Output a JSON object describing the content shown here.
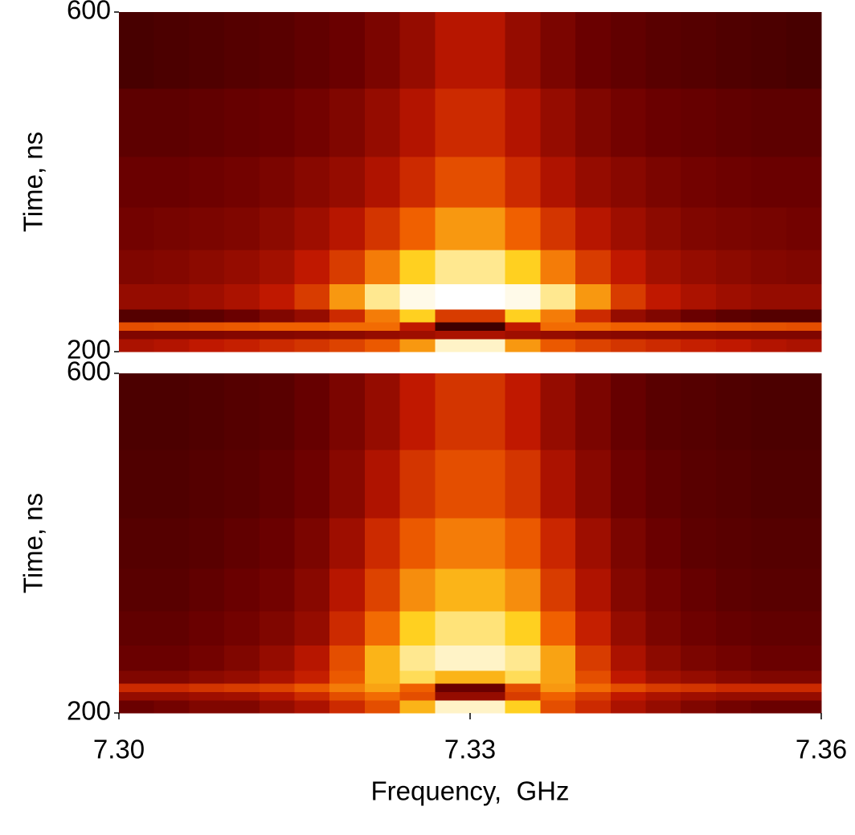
{
  "chart_data": [
    {
      "type": "heatmap",
      "ylabel": "Time, ns",
      "xlim": [
        7.3,
        7.36
      ],
      "ylim": [
        200,
        600
      ],
      "yticks": [
        200,
        600
      ],
      "xbins": [
        7.3,
        7.303,
        7.306,
        7.309,
        7.312,
        7.315,
        7.318,
        7.321,
        7.324,
        7.327,
        7.33,
        7.333,
        7.336,
        7.339,
        7.342,
        7.345,
        7.348,
        7.351,
        7.354,
        7.357,
        7.36
      ],
      "ybins": [
        200,
        215,
        225,
        235,
        250,
        280,
        320,
        370,
        430,
        510,
        600
      ],
      "zlim": [
        0,
        1
      ],
      "colorscale": [
        "#140000",
        "#6a0000",
        "#c01800",
        "#f06000",
        "#ffd020",
        "#ffffff"
      ],
      "values": [
        [
          0.35,
          0.37,
          0.4,
          0.42,
          0.45,
          0.48,
          0.52,
          0.58,
          0.7,
          0.95,
          0.95,
          0.7,
          0.58,
          0.52,
          0.48,
          0.45,
          0.42,
          0.4,
          0.37,
          0.35
        ],
        [
          0.25,
          0.25,
          0.25,
          0.26,
          0.26,
          0.27,
          0.28,
          0.3,
          0.32,
          0.35,
          0.35,
          0.32,
          0.3,
          0.28,
          0.27,
          0.26,
          0.26,
          0.25,
          0.25,
          0.25
        ],
        [
          0.55,
          0.56,
          0.57,
          0.58,
          0.6,
          0.6,
          0.62,
          0.62,
          0.4,
          0.1,
          0.1,
          0.4,
          0.62,
          0.62,
          0.6,
          0.6,
          0.58,
          0.57,
          0.56,
          0.55
        ],
        [
          0.15,
          0.15,
          0.17,
          0.2,
          0.25,
          0.3,
          0.45,
          0.65,
          0.8,
          0.5,
          0.5,
          0.8,
          0.65,
          0.45,
          0.3,
          0.25,
          0.2,
          0.17,
          0.15,
          0.15
        ],
        [
          0.3,
          0.3,
          0.32,
          0.35,
          0.4,
          0.5,
          0.7,
          0.9,
          0.98,
          1,
          1,
          0.98,
          0.9,
          0.7,
          0.5,
          0.4,
          0.35,
          0.32,
          0.3,
          0.3
        ],
        [
          0.25,
          0.26,
          0.28,
          0.3,
          0.33,
          0.4,
          0.5,
          0.65,
          0.8,
          0.9,
          0.9,
          0.8,
          0.65,
          0.5,
          0.4,
          0.33,
          0.3,
          0.28,
          0.26,
          0.25
        ],
        [
          0.22,
          0.23,
          0.24,
          0.25,
          0.28,
          0.32,
          0.38,
          0.48,
          0.6,
          0.7,
          0.7,
          0.6,
          0.48,
          0.38,
          0.32,
          0.28,
          0.25,
          0.24,
          0.23,
          0.22
        ],
        [
          0.2,
          0.2,
          0.21,
          0.22,
          0.24,
          0.27,
          0.3,
          0.36,
          0.45,
          0.55,
          0.55,
          0.45,
          0.36,
          0.3,
          0.27,
          0.24,
          0.22,
          0.21,
          0.2,
          0.2
        ],
        [
          0.17,
          0.17,
          0.18,
          0.19,
          0.2,
          0.22,
          0.25,
          0.3,
          0.37,
          0.45,
          0.45,
          0.37,
          0.3,
          0.25,
          0.22,
          0.2,
          0.19,
          0.18,
          0.17,
          0.17
        ],
        [
          0.12,
          0.13,
          0.14,
          0.15,
          0.16,
          0.18,
          0.2,
          0.24,
          0.3,
          0.38,
          0.38,
          0.3,
          0.24,
          0.2,
          0.18,
          0.16,
          0.15,
          0.14,
          0.13,
          0.12
        ]
      ]
    },
    {
      "type": "heatmap",
      "ylabel": "Time, ns",
      "xlabel": "Frequency,  GHz",
      "xlim": [
        7.3,
        7.36
      ],
      "xticks": [
        {
          "value": 7.3,
          "label": "7.30"
        },
        7.33,
        7.36
      ],
      "ylim": [
        200,
        600
      ],
      "yticks": [
        200,
        600
      ],
      "xbins": [
        7.3,
        7.303,
        7.306,
        7.309,
        7.312,
        7.315,
        7.318,
        7.321,
        7.324,
        7.327,
        7.33,
        7.333,
        7.336,
        7.339,
        7.342,
        7.345,
        7.348,
        7.351,
        7.354,
        7.357,
        7.36
      ],
      "ybins": [
        200,
        215,
        225,
        235,
        250,
        280,
        320,
        370,
        430,
        510,
        600
      ],
      "zlim": [
        0,
        1
      ],
      "colorscale": [
        "#140000",
        "#6a0000",
        "#c01800",
        "#f06000",
        "#ffd020",
        "#ffffff"
      ],
      "values": [
        [
          0.2,
          0.22,
          0.25,
          0.25,
          0.3,
          0.35,
          0.45,
          0.55,
          0.75,
          0.95,
          0.95,
          0.8,
          0.55,
          0.45,
          0.35,
          0.3,
          0.25,
          0.22,
          0.2,
          0.2
        ],
        [
          0.3,
          0.3,
          0.32,
          0.33,
          0.38,
          0.45,
          0.55,
          0.62,
          0.55,
          0.3,
          0.3,
          0.5,
          0.6,
          0.5,
          0.4,
          0.35,
          0.32,
          0.3,
          0.3,
          0.3
        ],
        [
          0.45,
          0.45,
          0.48,
          0.5,
          0.52,
          0.58,
          0.65,
          0.72,
          0.6,
          0.2,
          0.2,
          0.55,
          0.7,
          0.62,
          0.55,
          0.5,
          0.48,
          0.45,
          0.45,
          0.45
        ],
        [
          0.25,
          0.25,
          0.28,
          0.3,
          0.35,
          0.42,
          0.58,
          0.75,
          0.85,
          0.75,
          0.75,
          0.85,
          0.72,
          0.55,
          0.4,
          0.33,
          0.3,
          0.27,
          0.25,
          0.25
        ],
        [
          0.2,
          0.2,
          0.22,
          0.25,
          0.3,
          0.38,
          0.55,
          0.75,
          0.9,
          0.95,
          0.95,
          0.9,
          0.72,
          0.5,
          0.35,
          0.28,
          0.24,
          0.22,
          0.2,
          0.2
        ],
        [
          0.18,
          0.18,
          0.2,
          0.22,
          0.25,
          0.3,
          0.45,
          0.62,
          0.8,
          0.88,
          0.88,
          0.8,
          0.6,
          0.42,
          0.3,
          0.24,
          0.21,
          0.19,
          0.18,
          0.18
        ],
        [
          0.16,
          0.16,
          0.18,
          0.2,
          0.22,
          0.27,
          0.38,
          0.52,
          0.68,
          0.75,
          0.75,
          0.68,
          0.5,
          0.36,
          0.26,
          0.22,
          0.19,
          0.17,
          0.16,
          0.16
        ],
        [
          0.15,
          0.15,
          0.16,
          0.18,
          0.2,
          0.24,
          0.32,
          0.45,
          0.58,
          0.65,
          0.65,
          0.58,
          0.44,
          0.32,
          0.24,
          0.2,
          0.17,
          0.16,
          0.15,
          0.15
        ],
        [
          0.14,
          0.14,
          0.15,
          0.16,
          0.18,
          0.21,
          0.27,
          0.36,
          0.48,
          0.55,
          0.55,
          0.48,
          0.35,
          0.27,
          0.21,
          0.18,
          0.16,
          0.15,
          0.14,
          0.14
        ],
        [
          0.13,
          0.13,
          0.14,
          0.15,
          0.16,
          0.19,
          0.24,
          0.3,
          0.4,
          0.48,
          0.48,
          0.4,
          0.3,
          0.24,
          0.19,
          0.16,
          0.15,
          0.14,
          0.13,
          0.13
        ]
      ]
    }
  ]
}
